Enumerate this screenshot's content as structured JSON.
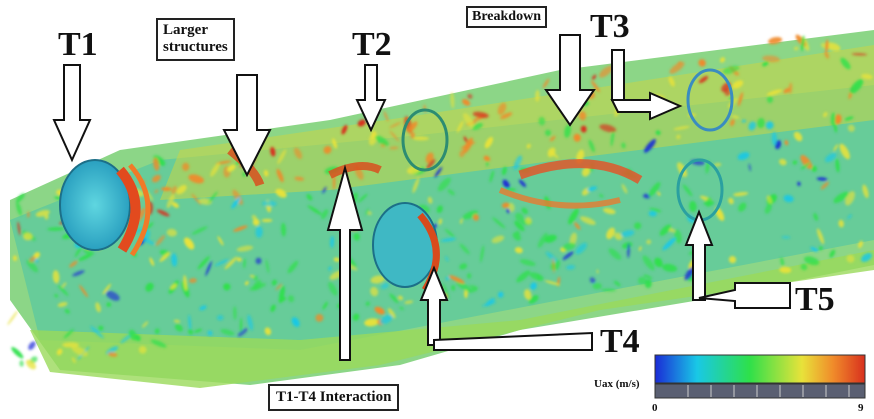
{
  "figure": {
    "turbines": [
      {
        "label": "T1"
      },
      {
        "label": "T2"
      },
      {
        "label": "T3"
      },
      {
        "label": "T4"
      },
      {
        "label": "T5"
      }
    ],
    "annotations": {
      "larger_structures_line1": "Larger",
      "larger_structures_line2": "structures",
      "breakdown": "Breakdown",
      "interaction": "T1-T4 Interaction"
    },
    "colorbar": {
      "label": "Uax (m/s)",
      "min": "0",
      "max": "9",
      "colormap": [
        "#1a2bd6",
        "#19c8e6",
        "#2ee04a",
        "#e8e23a",
        "#f08a2a",
        "#d8301e"
      ]
    }
  }
}
